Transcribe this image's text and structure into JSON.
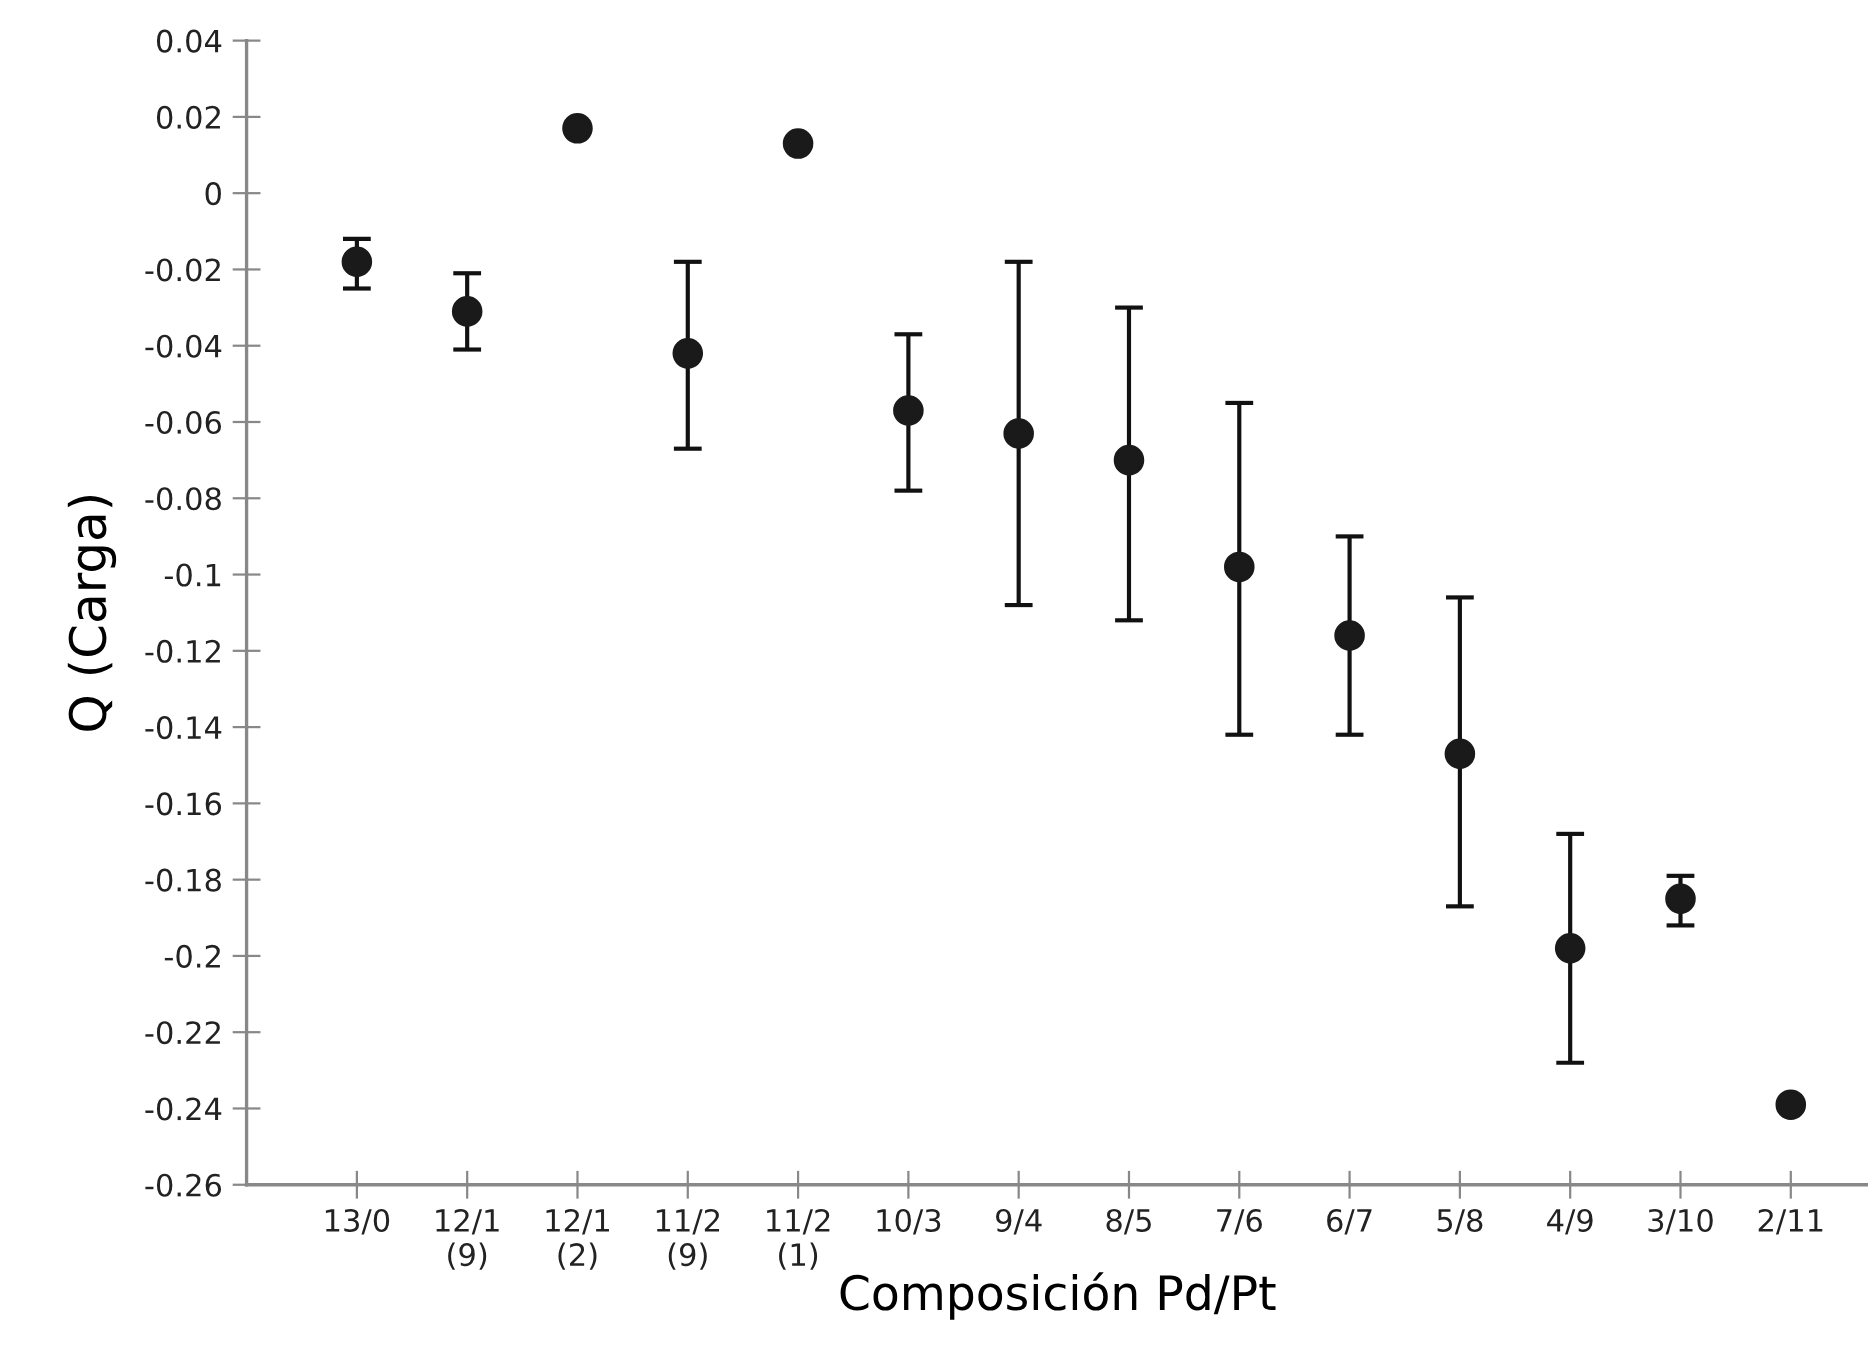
{
  "chart_data": {
    "type": "scatter",
    "xlabel": "Composición Pd/Pt",
    "ylabel": "Q (Carga)",
    "categories": [
      "13/0",
      "12/1\n(9)",
      "12/1\n(2)",
      "11/2\n(9)",
      "11/2\n(1)",
      "10/3",
      "9/4",
      "8/5",
      "7/6",
      "6/7",
      "5/8",
      "4/9",
      "3/10",
      "2/11"
    ],
    "values": [
      -0.018,
      -0.031,
      0.017,
      -0.042,
      0.013,
      -0.057,
      -0.063,
      -0.07,
      -0.098,
      -0.116,
      -0.147,
      -0.198,
      -0.185,
      -0.239
    ],
    "errors": [
      [
        -0.025,
        -0.012
      ],
      [
        -0.041,
        -0.021
      ],
      null,
      [
        -0.067,
        -0.018
      ],
      null,
      [
        -0.078,
        -0.037
      ],
      [
        -0.108,
        -0.018
      ],
      [
        -0.112,
        -0.03
      ],
      [
        -0.142,
        -0.055
      ],
      [
        -0.142,
        -0.09
      ],
      [
        -0.187,
        -0.106
      ],
      [
        -0.228,
        -0.168
      ],
      [
        -0.192,
        -0.179
      ],
      null
    ],
    "color": "#1a1a1a",
    "marker": "circle",
    "ylim": [
      -0.26,
      0.04
    ],
    "yticks": [
      0.04,
      0.02,
      0,
      -0.02,
      -0.04,
      -0.06,
      -0.08,
      -0.1,
      -0.12,
      -0.14,
      -0.16,
      -0.18,
      -0.2,
      -0.22,
      -0.24,
      -0.26
    ],
    "grid": false,
    "legend": false
  }
}
